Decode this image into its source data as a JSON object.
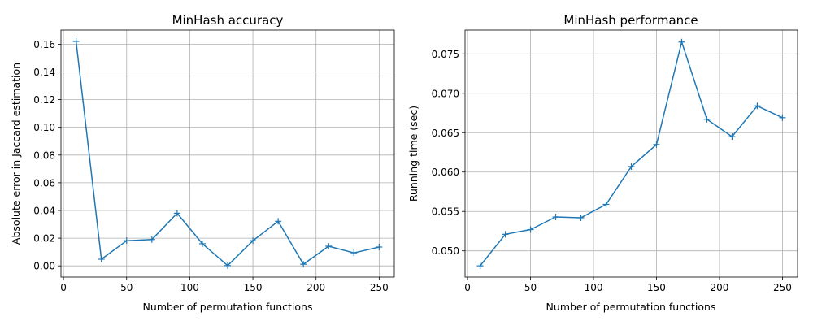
{
  "chart_data": [
    {
      "type": "line",
      "title": "MinHash accuracy",
      "xlabel": "Number of permutation functions",
      "ylabel": "Absolute error in Jaccard estimation",
      "xlim": [
        -2,
        262
      ],
      "ylim": [
        -0.0081,
        0.1702
      ],
      "xticks": [
        0,
        50,
        100,
        150,
        200,
        250
      ],
      "xtick_labels": [
        "0",
        "50",
        "100",
        "150",
        "200",
        "250"
      ],
      "yticks": [
        0.0,
        0.02,
        0.04,
        0.06,
        0.08,
        0.1,
        0.12,
        0.14,
        0.16
      ],
      "ytick_labels": [
        "0.00",
        "0.02",
        "0.04",
        "0.06",
        "0.08",
        "0.10",
        "0.12",
        "0.14",
        "0.16"
      ],
      "grid": true,
      "color": "#1f77b4",
      "marker": "+",
      "x": [
        10,
        30,
        50,
        70,
        90,
        110,
        130,
        150,
        170,
        190,
        210,
        230,
        250
      ],
      "y": [
        0.162,
        0.0048,
        0.0182,
        0.019,
        0.038,
        0.016,
        0.0002,
        0.0182,
        0.0322,
        0.0012,
        0.0142,
        0.0094,
        0.0136
      ]
    },
    {
      "type": "line",
      "title": "MinHash performance",
      "xlabel": "Number of permutation functions",
      "ylabel": "Running time (sec)",
      "xlim": [
        -2,
        262
      ],
      "ylim": [
        0.04667,
        0.07802
      ],
      "xticks": [
        0,
        50,
        100,
        150,
        200,
        250
      ],
      "xtick_labels": [
        "0",
        "50",
        "100",
        "150",
        "200",
        "250"
      ],
      "yticks": [
        0.05,
        0.055,
        0.06,
        0.065,
        0.07,
        0.075
      ],
      "ytick_labels": [
        "0.050",
        "0.055",
        "0.060",
        "0.065",
        "0.070",
        "0.075"
      ],
      "grid": true,
      "color": "#1f77b4",
      "marker": "+",
      "x": [
        10,
        30,
        50,
        70,
        90,
        110,
        130,
        150,
        170,
        190,
        210,
        230,
        250
      ],
      "y": [
        0.0481,
        0.0521,
        0.0527,
        0.0543,
        0.0542,
        0.0559,
        0.0607,
        0.0635,
        0.0765,
        0.0667,
        0.0645,
        0.0684,
        0.0669
      ]
    }
  ]
}
